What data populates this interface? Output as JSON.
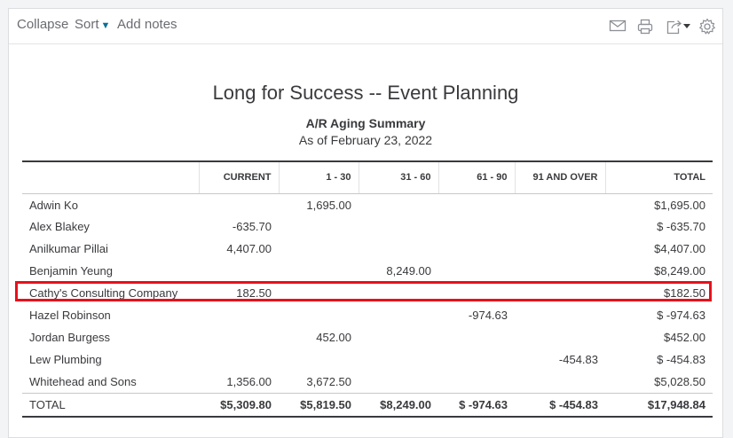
{
  "toolbar": {
    "collapse_label": "Collapse",
    "sort_label": "Sort",
    "add_notes_label": "Add notes",
    "icons": [
      "email-icon",
      "print-icon",
      "export-icon",
      "settings-icon"
    ]
  },
  "report": {
    "company": "Long for Success -- Event Planning",
    "title": "A/R Aging Summary",
    "as_of": "As of February 23, 2022"
  },
  "table": {
    "columns": [
      "",
      "CURRENT",
      "1 - 30",
      "31 - 60",
      "61 - 90",
      "91 AND OVER",
      "TOTAL"
    ],
    "rows": [
      [
        "Adwin Ko",
        "",
        "1,695.00",
        "",
        "",
        "",
        "$1,695.00"
      ],
      [
        "Alex Blakey",
        "-635.70",
        "",
        "",
        "",
        "",
        "$ -635.70"
      ],
      [
        "Anilkumar Pillai",
        "4,407.00",
        "",
        "",
        "",
        "",
        "$4,407.00"
      ],
      [
        "Benjamin Yeung",
        "",
        "",
        "8,249.00",
        "",
        "",
        "$8,249.00"
      ],
      [
        "Cathy's Consulting Company",
        "182.50",
        "",
        "",
        "",
        "",
        "$182.50"
      ],
      [
        "Hazel Robinson",
        "",
        "",
        "",
        "-974.63",
        "",
        "$ -974.63"
      ],
      [
        "Jordan Burgess",
        "",
        "452.00",
        "",
        "",
        "",
        "$452.00"
      ],
      [
        "Lew Plumbing",
        "",
        "",
        "",
        "",
        "-454.83",
        "$ -454.83"
      ],
      [
        "Whitehead and Sons",
        "1,356.00",
        "3,672.50",
        "",
        "",
        "",
        "$5,028.50"
      ]
    ],
    "total": [
      "TOTAL",
      "$5,309.80",
      "$5,819.50",
      "$8,249.00",
      "$ -974.63",
      "$ -454.83",
      "$17,948.84"
    ]
  },
  "highlight": {
    "row": "Cathy's Consulting Company",
    "color": "#e8101b"
  }
}
